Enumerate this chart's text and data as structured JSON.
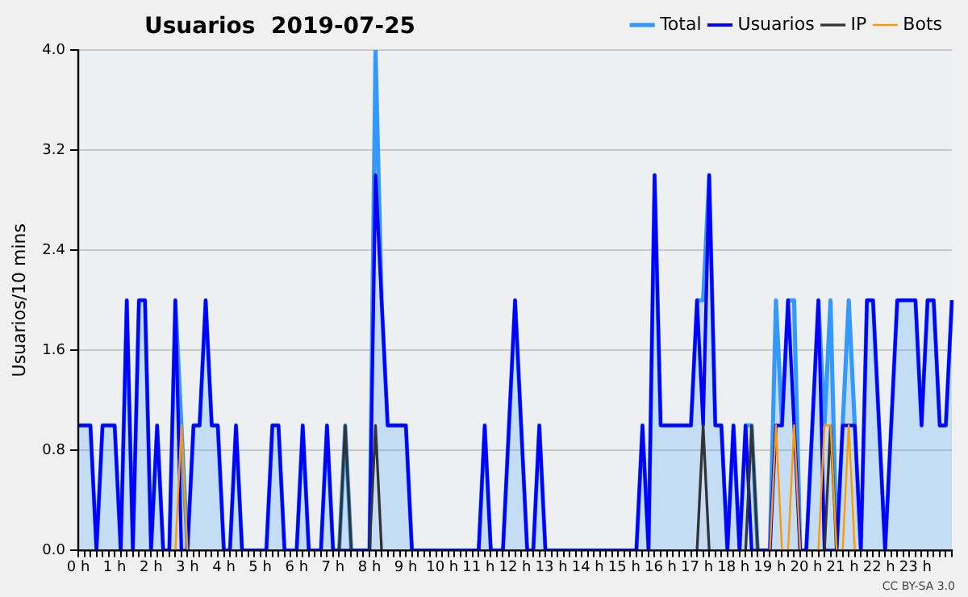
{
  "chart_data": {
    "type": "line",
    "title": "Usuarios  2019-07-25",
    "ylabel": "Usuarios/10 mins",
    "annotations": [
      "CC BY-SA 3.0"
    ],
    "categories": [
      "0 h",
      null,
      null,
      null,
      null,
      null,
      "1 h",
      null,
      null,
      null,
      null,
      null,
      "2 h",
      null,
      null,
      null,
      null,
      null,
      "3 h",
      null,
      null,
      null,
      null,
      null,
      "4 h",
      null,
      null,
      null,
      null,
      null,
      "5 h",
      null,
      null,
      null,
      null,
      null,
      "6 h",
      null,
      null,
      null,
      null,
      null,
      "7 h",
      null,
      null,
      null,
      null,
      null,
      "8 h",
      null,
      null,
      null,
      null,
      null,
      "9 h",
      null,
      null,
      null,
      null,
      null,
      "10 h",
      null,
      null,
      null,
      null,
      null,
      "11 h",
      null,
      null,
      null,
      null,
      null,
      "12 h",
      null,
      null,
      null,
      null,
      null,
      "13 h",
      null,
      null,
      null,
      null,
      null,
      "14 h",
      null,
      null,
      null,
      null,
      null,
      "15 h",
      null,
      null,
      null,
      null,
      null,
      "16 h",
      null,
      null,
      null,
      null,
      null,
      "17 h",
      null,
      null,
      null,
      null,
      null,
      "18 h",
      null,
      null,
      null,
      null,
      null,
      "19 h",
      null,
      null,
      null,
      null,
      null,
      "20 h",
      null,
      null,
      null,
      null,
      null,
      "21 h",
      null,
      null,
      null,
      null,
      null,
      "22 h",
      null,
      null,
      null,
      null,
      null,
      "23 h",
      null,
      null,
      null,
      null,
      null,
      null
    ],
    "series": [
      {
        "name": "Total",
        "type": "area",
        "color": "#3399ff",
        "values": [
          1,
          1,
          1,
          0,
          1,
          1,
          1,
          0,
          2,
          0,
          2,
          2,
          0,
          1,
          0,
          0,
          2,
          1,
          0,
          1,
          1,
          2,
          1,
          1,
          0,
          0,
          1,
          0,
          0,
          0,
          0,
          0,
          1,
          1,
          0,
          0,
          0,
          1,
          0,
          0,
          0,
          1,
          0,
          0,
          1,
          0,
          0,
          0,
          0,
          4,
          2,
          1,
          1,
          1,
          1,
          0,
          0,
          0,
          0,
          0,
          0,
          0,
          0,
          0,
          0,
          0,
          0,
          1,
          0,
          0,
          0,
          1,
          2,
          1,
          0,
          0,
          1,
          0,
          0,
          0,
          0,
          0,
          0,
          0,
          0,
          0,
          0,
          0,
          0,
          0,
          0,
          0,
          0,
          1,
          0,
          3,
          1,
          1,
          1,
          1,
          1,
          1,
          2,
          2,
          3,
          1,
          1,
          0,
          1,
          0,
          1,
          1,
          0,
          0,
          0,
          2,
          1,
          2,
          2,
          0,
          0,
          1,
          2,
          1,
          2,
          0,
          1,
          2,
          1,
          0,
          2,
          2,
          1,
          0,
          1,
          2,
          2,
          2,
          2,
          1,
          2,
          2,
          1,
          1,
          2
        ]
      },
      {
        "name": "Usuarios",
        "color": "#0000ff",
        "values": [
          1,
          1,
          1,
          0,
          1,
          1,
          1,
          0,
          2,
          0,
          2,
          2,
          0,
          1,
          0,
          0,
          2,
          0,
          0,
          1,
          1,
          2,
          1,
          1,
          0,
          0,
          1,
          0,
          0,
          0,
          0,
          0,
          1,
          1,
          0,
          0,
          0,
          1,
          0,
          0,
          0,
          1,
          0,
          0,
          0,
          0,
          0,
          0,
          0,
          3,
          2,
          1,
          1,
          1,
          1,
          0,
          0,
          0,
          0,
          0,
          0,
          0,
          0,
          0,
          0,
          0,
          0,
          1,
          0,
          0,
          0,
          1,
          2,
          1,
          0,
          0,
          1,
          0,
          0,
          0,
          0,
          0,
          0,
          0,
          0,
          0,
          0,
          0,
          0,
          0,
          0,
          0,
          0,
          1,
          0,
          3,
          1,
          1,
          1,
          1,
          1,
          1,
          2,
          1,
          3,
          1,
          1,
          0,
          1,
          0,
          1,
          0,
          0,
          0,
          0,
          1,
          1,
          2,
          1,
          0,
          0,
          1,
          2,
          0,
          0,
          0,
          1,
          1,
          1,
          0,
          2,
          2,
          1,
          0,
          1,
          2,
          2,
          2,
          2,
          1,
          2,
          2,
          1,
          1,
          2
        ]
      },
      {
        "name": "IP",
        "color": "#333333",
        "values": [
          null,
          null,
          null,
          null,
          null,
          null,
          null,
          null,
          null,
          null,
          null,
          null,
          null,
          null,
          null,
          null,
          null,
          null,
          null,
          null,
          null,
          null,
          null,
          null,
          null,
          null,
          null,
          null,
          null,
          null,
          null,
          null,
          null,
          null,
          null,
          null,
          null,
          null,
          null,
          null,
          null,
          null,
          null,
          0,
          1,
          0,
          null,
          null,
          0,
          1,
          0,
          null,
          null,
          null,
          null,
          null,
          null,
          null,
          null,
          null,
          null,
          null,
          null,
          null,
          null,
          null,
          null,
          null,
          null,
          null,
          null,
          null,
          null,
          null,
          null,
          null,
          null,
          null,
          null,
          null,
          null,
          null,
          null,
          null,
          null,
          null,
          null,
          null,
          null,
          null,
          null,
          null,
          null,
          null,
          null,
          null,
          null,
          null,
          null,
          null,
          null,
          null,
          0,
          1,
          0,
          null,
          null,
          null,
          null,
          null,
          0,
          1,
          0,
          null,
          null,
          null,
          null,
          null,
          null,
          null,
          null,
          null,
          null,
          0,
          1,
          0,
          null,
          null,
          null,
          null,
          null,
          null,
          null,
          null,
          null,
          null,
          null,
          null,
          null,
          null,
          null,
          null,
          null,
          null,
          null
        ]
      },
      {
        "name": "Bots",
        "color": "#ff9900",
        "values": [
          null,
          null,
          null,
          null,
          null,
          null,
          null,
          null,
          null,
          null,
          null,
          null,
          null,
          null,
          null,
          null,
          0,
          1,
          0,
          null,
          null,
          null,
          null,
          null,
          null,
          null,
          null,
          null,
          null,
          null,
          null,
          null,
          null,
          null,
          null,
          null,
          null,
          null,
          null,
          null,
          null,
          null,
          null,
          null,
          null,
          null,
          null,
          null,
          null,
          null,
          null,
          null,
          null,
          null,
          null,
          null,
          null,
          null,
          null,
          null,
          null,
          null,
          null,
          null,
          null,
          null,
          null,
          null,
          null,
          null,
          null,
          null,
          null,
          null,
          null,
          null,
          null,
          null,
          null,
          null,
          null,
          null,
          null,
          null,
          null,
          null,
          null,
          null,
          null,
          null,
          null,
          null,
          null,
          null,
          null,
          null,
          null,
          null,
          null,
          null,
          null,
          null,
          null,
          null,
          null,
          null,
          null,
          null,
          null,
          null,
          null,
          null,
          null,
          null,
          0,
          1,
          0,
          0,
          1,
          0,
          null,
          null,
          0,
          1,
          1,
          0,
          0,
          1,
          0,
          null,
          null,
          null,
          null,
          null,
          null,
          null,
          null,
          null,
          null,
          null,
          null,
          null,
          null,
          null,
          null
        ]
      }
    ],
    "ylim": [
      0,
      4
    ],
    "yticks": [
      {
        "value": 0,
        "label": "0.0"
      },
      0.8,
      1.6,
      2.4,
      3.2,
      {
        "value": 4,
        "label": "4.0"
      }
    ],
    "grid": "y",
    "legend": "top right",
    "marker": "none",
    "line_style": "solid"
  }
}
